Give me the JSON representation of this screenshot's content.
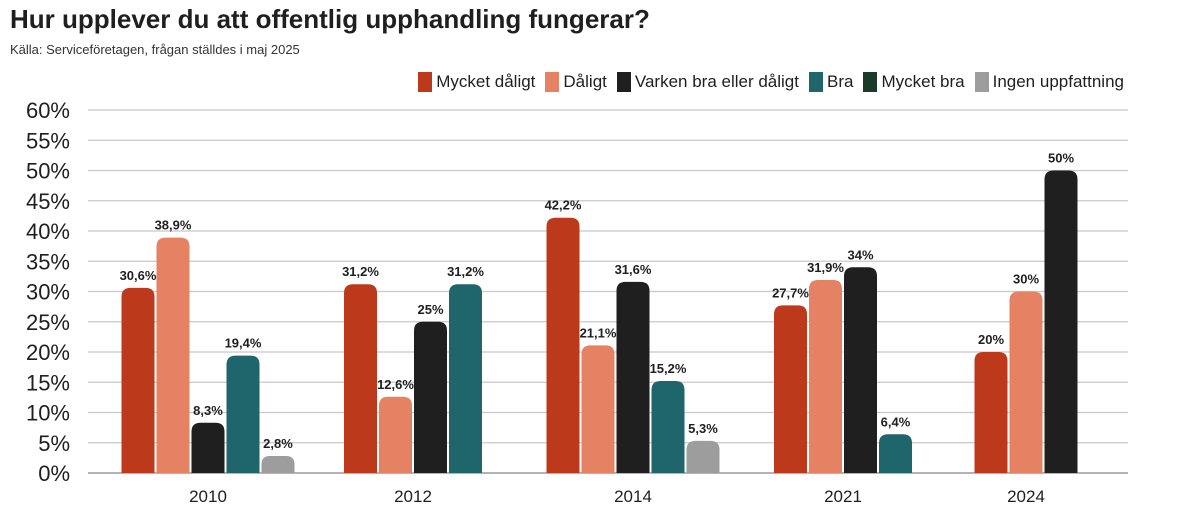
{
  "chart_data": {
    "type": "bar",
    "title": "Hur upplever du att offentlig upphandling fungerar?",
    "subtitle": "Källa: Serviceföretagen, frågan ställdes i maj 2025",
    "xlabel": "",
    "ylabel": "",
    "ylim": [
      0,
      60
    ],
    "yticks": [
      "0%",
      "5%",
      "10%",
      "15%",
      "20%",
      "25%",
      "30%",
      "35%",
      "40%",
      "45%",
      "50%",
      "55%",
      "60%"
    ],
    "grid": true,
    "legend_position": "top-right",
    "categories": [
      "2010",
      "2012",
      "2014",
      "2021",
      "2024"
    ],
    "series": [
      {
        "name": "Mycket dåligt",
        "color": "#bc3a1b",
        "values": [
          30.6,
          31.2,
          42.2,
          27.7,
          20
        ],
        "labels": [
          "30,6%",
          "31,2%",
          "42,2%",
          "27,7%",
          "20%"
        ]
      },
      {
        "name": "Dåligt",
        "color": "#e48263",
        "values": [
          38.9,
          12.6,
          21.1,
          31.9,
          30
        ],
        "labels": [
          "38,9%",
          "12,6%",
          "21,1%",
          "31,9%",
          "30%"
        ]
      },
      {
        "name": "Varken bra eller dåligt",
        "color": "#1f1f1f",
        "values": [
          8.3,
          25,
          31.6,
          34,
          50
        ],
        "labels": [
          "8,3%",
          "25%",
          "31,6%",
          "34%",
          "50%"
        ]
      },
      {
        "name": "Bra",
        "color": "#1e666c",
        "values": [
          19.4,
          31.2,
          15.2,
          6.4,
          null
        ],
        "labels": [
          "19,4%",
          "31,2%",
          "15,2%",
          "6,4%",
          null
        ]
      },
      {
        "name": "Mycket bra",
        "color": "#1b3a2a",
        "values": [
          null,
          null,
          null,
          null,
          null
        ],
        "labels": [
          null,
          null,
          null,
          null,
          null
        ]
      },
      {
        "name": "Ingen uppfattning",
        "color": "#9c9d9c",
        "values": [
          2.8,
          null,
          5.3,
          null,
          null
        ],
        "labels": [
          "2,8%",
          null,
          "5,3%",
          null,
          null
        ]
      }
    ]
  }
}
